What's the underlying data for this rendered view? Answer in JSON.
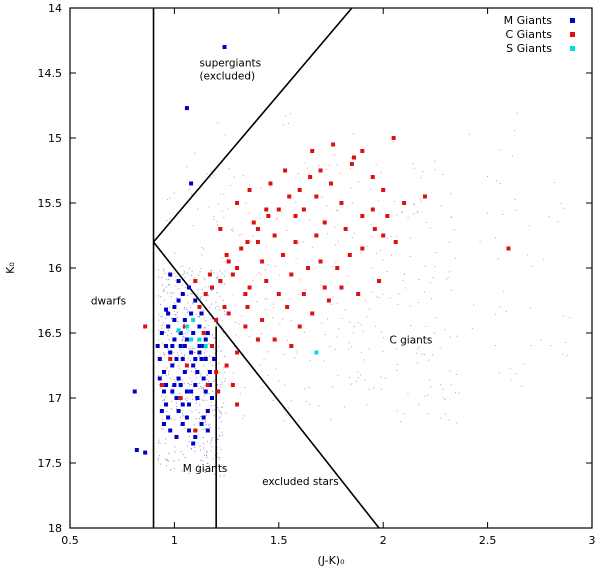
{
  "chart_data": {
    "type": "scatter",
    "title": "",
    "xlabel": "(J-K)₀",
    "ylabel": "K₀",
    "xlim": [
      0.5,
      3.0
    ],
    "ylim": [
      14.0,
      18.0
    ],
    "y_inverted": true,
    "xticks": [
      "0.5",
      "1",
      "1.5",
      "2",
      "2.5",
      "3"
    ],
    "yticks": [
      "14",
      "14.5",
      "15",
      "15.5",
      "16",
      "16.5",
      "17",
      "17.5",
      "18"
    ],
    "legend_position": "top-right",
    "series": [
      {
        "name": "M Giants",
        "color": "#0000cc",
        "points": [
          [
            1.24,
            14.3
          ],
          [
            1.06,
            14.77
          ],
          [
            1.08,
            15.35
          ],
          [
            0.81,
            16.95
          ],
          [
            0.82,
            17.4
          ],
          [
            0.86,
            17.42
          ],
          [
            0.96,
            16.32
          ],
          [
            0.98,
            16.05
          ],
          [
            1.02,
            16.25
          ],
          [
            1.02,
            16.1
          ],
          [
            1.05,
            16.4
          ],
          [
            1.08,
            16.35
          ],
          [
            1.12,
            16.45
          ],
          [
            1.15,
            16.55
          ],
          [
            0.92,
            16.6
          ],
          [
            0.93,
            16.7
          ],
          [
            0.95,
            16.8
          ],
          [
            0.95,
            16.95
          ],
          [
            0.96,
            17.05
          ],
          [
            0.97,
            17.15
          ],
          [
            0.98,
            16.65
          ],
          [
            0.99,
            16.75
          ],
          [
            1.0,
            16.9
          ],
          [
            1.01,
            17.0
          ],
          [
            1.02,
            17.1
          ],
          [
            1.03,
            16.6
          ],
          [
            1.04,
            16.7
          ],
          [
            1.05,
            16.8
          ],
          [
            1.06,
            16.95
          ],
          [
            1.07,
            17.05
          ],
          [
            1.08,
            16.65
          ],
          [
            1.09,
            16.75
          ],
          [
            1.1,
            16.9
          ],
          [
            1.11,
            17.0
          ],
          [
            1.12,
            16.6
          ],
          [
            1.13,
            16.7
          ],
          [
            1.14,
            16.85
          ],
          [
            1.15,
            16.95
          ],
          [
            1.16,
            17.1
          ],
          [
            0.94,
            16.5
          ],
          [
            0.97,
            16.45
          ],
          [
            1.0,
            16.55
          ],
          [
            1.03,
            16.5
          ],
          [
            1.06,
            16.55
          ],
          [
            1.09,
            16.5
          ],
          [
            1.12,
            16.65
          ],
          [
            1.15,
            16.7
          ],
          [
            1.17,
            16.8
          ],
          [
            0.95,
            17.2
          ],
          [
            0.98,
            17.25
          ],
          [
            1.01,
            17.3
          ],
          [
            1.04,
            17.2
          ],
          [
            1.07,
            17.25
          ],
          [
            1.1,
            17.3
          ],
          [
            1.13,
            17.2
          ],
          [
            1.16,
            17.25
          ],
          [
            0.93,
            16.85
          ],
          [
            0.96,
            16.6
          ],
          [
            0.99,
            16.95
          ],
          [
            1.02,
            16.85
          ],
          [
            1.05,
            16.6
          ],
          [
            1.08,
            16.95
          ],
          [
            1.11,
            16.8
          ],
          [
            1.14,
            16.6
          ],
          [
            1.17,
            16.9
          ],
          [
            1.0,
            16.3
          ],
          [
            1.04,
            16.2
          ],
          [
            1.07,
            16.15
          ],
          [
            1.1,
            16.25
          ],
          [
            1.0,
            16.4
          ],
          [
            1.13,
            16.35
          ],
          [
            0.97,
            16.35
          ],
          [
            1.19,
            16.7
          ],
          [
            1.18,
            17.0
          ],
          [
            0.99,
            16.6
          ],
          [
            1.03,
            16.9
          ],
          [
            1.06,
            17.15
          ],
          [
            1.09,
            17.35
          ],
          [
            1.14,
            17.15
          ],
          [
            0.94,
            17.1
          ],
          [
            1.01,
            16.7
          ],
          [
            1.04,
            17.05
          ],
          [
            1.1,
            16.7
          ],
          [
            1.16,
            16.5
          ],
          [
            0.96,
            16.9
          ]
        ]
      },
      {
        "name": "C Giants",
        "color": "#dd1111",
        "points": [
          [
            1.35,
            15.8
          ],
          [
            1.4,
            15.7
          ],
          [
            1.45,
            15.6
          ],
          [
            1.5,
            15.55
          ],
          [
            1.55,
            15.45
          ],
          [
            1.6,
            15.4
          ],
          [
            1.65,
            15.3
          ],
          [
            1.7,
            15.25
          ],
          [
            1.75,
            15.35
          ],
          [
            1.8,
            15.5
          ],
          [
            1.85,
            15.2
          ],
          [
            1.9,
            15.1
          ],
          [
            1.95,
            15.3
          ],
          [
            2.0,
            15.4
          ],
          [
            2.05,
            15.0
          ],
          [
            1.72,
            15.65
          ],
          [
            1.68,
            15.75
          ],
          [
            1.62,
            15.55
          ],
          [
            1.58,
            15.8
          ],
          [
            1.52,
            15.9
          ],
          [
            1.48,
            15.75
          ],
          [
            1.42,
            15.95
          ],
          [
            1.38,
            15.65
          ],
          [
            1.32,
            15.85
          ],
          [
            1.3,
            16.0
          ],
          [
            1.28,
            16.05
          ],
          [
            1.25,
            15.9
          ],
          [
            1.22,
            16.1
          ],
          [
            1.18,
            16.15
          ],
          [
            1.15,
            16.2
          ],
          [
            1.12,
            16.3
          ],
          [
            1.36,
            16.15
          ],
          [
            1.44,
            16.1
          ],
          [
            1.5,
            16.2
          ],
          [
            1.56,
            16.05
          ],
          [
            1.64,
            16.0
          ],
          [
            1.7,
            15.95
          ],
          [
            1.78,
            16.0
          ],
          [
            1.84,
            15.9
          ],
          [
            1.9,
            15.85
          ],
          [
            1.96,
            15.7
          ],
          [
            2.02,
            15.6
          ],
          [
            2.1,
            15.5
          ],
          [
            2.2,
            15.45
          ],
          [
            2.6,
            15.85
          ],
          [
            1.26,
            16.35
          ],
          [
            1.34,
            16.45
          ],
          [
            1.42,
            16.4
          ],
          [
            1.48,
            16.55
          ],
          [
            1.54,
            16.3
          ],
          [
            1.6,
            16.45
          ],
          [
            1.66,
            16.35
          ],
          [
            1.74,
            16.25
          ],
          [
            1.8,
            16.15
          ],
          [
            1.88,
            16.2
          ],
          [
            1.98,
            16.1
          ],
          [
            1.22,
            15.7
          ],
          [
            1.3,
            15.5
          ],
          [
            1.36,
            15.4
          ],
          [
            1.46,
            15.35
          ],
          [
            1.53,
            15.25
          ],
          [
            1.66,
            15.1
          ],
          [
            1.76,
            15.05
          ],
          [
            1.86,
            15.15
          ],
          [
            1.95,
            15.55
          ],
          [
            2.06,
            15.8
          ],
          [
            1.4,
            16.55
          ],
          [
            1.3,
            16.65
          ],
          [
            1.25,
            16.75
          ],
          [
            1.35,
            16.3
          ],
          [
            1.56,
            16.6
          ],
          [
            0.86,
            16.45
          ],
          [
            1.21,
            16.95
          ],
          [
            1.3,
            17.05
          ],
          [
            1.28,
            16.9
          ],
          [
            1.05,
            16.45
          ],
          [
            1.14,
            16.5
          ],
          [
            0.98,
            16.7
          ],
          [
            1.03,
            17.0
          ],
          [
            1.1,
            17.25
          ],
          [
            0.94,
            16.9
          ],
          [
            1.16,
            16.9
          ],
          [
            1.06,
            16.75
          ],
          [
            1.18,
            16.6
          ],
          [
            1.2,
            16.8
          ],
          [
            1.24,
            16.3
          ],
          [
            1.44,
            15.55
          ],
          [
            1.58,
            15.6
          ],
          [
            1.68,
            15.45
          ],
          [
            1.82,
            15.7
          ],
          [
            1.26,
            15.95
          ],
          [
            1.34,
            16.2
          ],
          [
            1.4,
            15.8
          ],
          [
            1.62,
            16.2
          ],
          [
            1.72,
            16.15
          ],
          [
            1.9,
            15.6
          ],
          [
            2.0,
            15.75
          ],
          [
            1.1,
            16.1
          ],
          [
            1.17,
            16.05
          ],
          [
            1.2,
            16.4
          ]
        ]
      },
      {
        "name": "S Giants",
        "color": "#00dddd",
        "points": [
          [
            1.06,
            16.45
          ],
          [
            1.09,
            16.4
          ],
          [
            1.12,
            16.55
          ],
          [
            1.15,
            16.6
          ],
          [
            1.08,
            16.55
          ],
          [
            1.02,
            16.48
          ],
          [
            1.68,
            16.65
          ]
        ]
      }
    ],
    "boundaries": [
      {
        "name": "vertical-line-x0.9",
        "points": [
          [
            0.9,
            14.0
          ],
          [
            0.9,
            18.0
          ]
        ]
      },
      {
        "name": "vertical-line-x1.2",
        "points": [
          [
            1.2,
            16.45
          ],
          [
            1.2,
            18.0
          ]
        ]
      },
      {
        "name": "upper-diagonal-line",
        "points": [
          [
            0.9,
            15.8
          ],
          [
            1.85,
            14.0
          ]
        ]
      },
      {
        "name": "lower-diagonal-line",
        "points": [
          [
            0.9,
            15.8
          ],
          [
            1.98,
            18.0
          ]
        ]
      }
    ],
    "annotations": [
      {
        "name": "supergiants-label",
        "lines": [
          "supergiants",
          "(excluded)"
        ],
        "at": [
          1.12,
          14.45
        ]
      },
      {
        "name": "dwarfs-label",
        "lines": [
          "dwarfs"
        ],
        "at": [
          0.6,
          16.28
        ]
      },
      {
        "name": "c-giants-label",
        "lines": [
          "C giants"
        ],
        "at": [
          2.03,
          16.58
        ]
      },
      {
        "name": "m-giants-label",
        "lines": [
          "M giants"
        ],
        "at": [
          1.04,
          17.57
        ]
      },
      {
        "name": "excluded-stars-label",
        "lines": [
          "excluded stars"
        ],
        "at": [
          1.42,
          17.67
        ]
      }
    ]
  }
}
